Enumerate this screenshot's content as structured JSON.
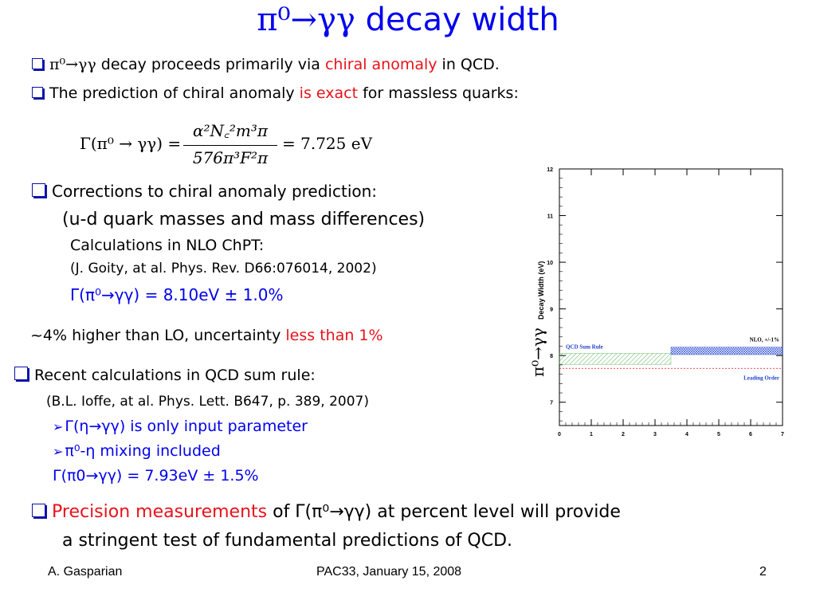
{
  "slide": {
    "title_main": "π⁰→γγ",
    "title_rest": " decay width",
    "b1": {
      "pre": "π⁰→γγ",
      "mid": " decay proceeds primarily via ",
      "red": "chiral anomaly",
      "post": " in  QCD."
    },
    "b2": {
      "mid": "The prediction of chiral anomaly ",
      "red": "is exact",
      "post": " for massless quarks:"
    },
    "formula": {
      "lhs": "Γ(π⁰ → γγ) =",
      "num": "α²N꜀²m³π",
      "den": "576π³F²π",
      "rhs": "= 7.725 eV"
    },
    "b3": {
      "line1": "Corrections to chiral anomaly prediction:",
      "line2": "(u-d quark masses and mass differences)",
      "line3": "Calculations in NLO ChPT:",
      "line4": "(J. Goity, at al. Phys. Rev. D66:076014, 2002)",
      "line5": "Γ(π⁰→γγ) = 8.10eV ± 1.0%",
      "line6_pre": "~4% higher than LO, uncertainty ",
      "line6_red": "less than 1%"
    },
    "b4": {
      "line1": "Recent calculations in QCD sum rule:",
      "line2": "(B.L. Ioffe, at al. Phys. Lett. B647, p. 389, 2007)",
      "sub1": "Γ(η→γγ) is only input parameter",
      "sub2": "π⁰-η mixing included",
      "line5": "Γ(π0→γγ) = 7.93eV ± 1.5%"
    },
    "b5": {
      "red": "Precision measurements",
      "post": " of Γ(π⁰→γγ) at percent level will provide",
      "line2": "a stringent test of fundamental predictions of QCD."
    },
    "footer": {
      "left": "A. Gasparian",
      "center": "PAC33, January 15, 2008",
      "right": "2"
    }
  },
  "chart_data": {
    "type": "area",
    "ylabel_greek": "π⁰→γγ",
    "ylabel_text": "Decay Width (eV)",
    "xlim": [
      0,
      7
    ],
    "ylim": [
      6.5,
      12
    ],
    "x_ticks": [
      "0",
      "1",
      "2",
      "3",
      "4",
      "5",
      "6",
      "7"
    ],
    "y_ticks": [
      "7",
      "8",
      "9",
      "10",
      "11",
      "12"
    ],
    "series": [
      {
        "name": "QCD Sum Rule",
        "x": [
          0,
          3.5
        ],
        "y_low": 7.81,
        "y_high": 8.05,
        "color": "#2ca02c"
      },
      {
        "name": "NLO, +/-1%",
        "x": [
          3.5,
          7
        ],
        "y_low": 8.02,
        "y_high": 8.18,
        "color": "#1f3fd0"
      },
      {
        "name": "Leading Order",
        "x": [
          0,
          7
        ],
        "y": 7.725,
        "color": "#e8121b"
      }
    ]
  }
}
